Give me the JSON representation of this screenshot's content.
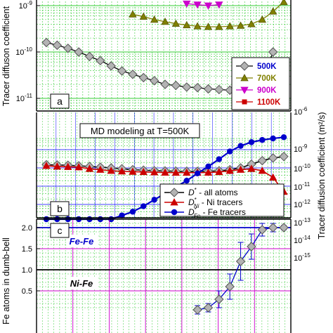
{
  "chart_data": [
    {
      "panel": "a",
      "type": "line",
      "scale": "log",
      "ylabel": "Tracer diffuson coefficient",
      "y_tick_labels": [
        "10-9",
        "10-10",
        "10-11"
      ],
      "ylim": [
        6e-12,
        1.2e-09
      ],
      "x_count": 23,
      "series": [
        {
          "name": "500K",
          "color": "#000000",
          "marker": "diamond-gray",
          "x": [
            1,
            2,
            3,
            4,
            5,
            6,
            7,
            8,
            9,
            10,
            11,
            12,
            13,
            14,
            15,
            16,
            17,
            18,
            19,
            20,
            21,
            22
          ],
          "values": [
            1.6e-10,
            1.4e-10,
            1.2e-10,
            1e-10,
            8e-11,
            6.5e-11,
            5e-11,
            3.9e-11,
            3.3e-11,
            2.8e-11,
            2.4e-11,
            2e-11,
            1.9e-11,
            1.75e-11,
            1.7e-11,
            1.6e-11,
            1.55e-11,
            1.5e-11,
            1.5e-11,
            1.6e-11,
            2.3e-11,
            1e-10
          ]
        },
        {
          "name": "700K",
          "color": "#808000",
          "marker": "triangle",
          "x": [
            9,
            10,
            11,
            12,
            13,
            14,
            15,
            16,
            17,
            18,
            19,
            20,
            21,
            22,
            23
          ],
          "values": [
            6.5e-10,
            5.8e-10,
            5e-10,
            4.5e-10,
            4.1e-10,
            3.8e-10,
            3.6e-10,
            3.5e-10,
            3.5e-10,
            3.6e-10,
            3.7e-10,
            4e-10,
            5e-10,
            7.5e-10,
            1.2e-09
          ]
        },
        {
          "name": "900K",
          "color": "#cc00cc",
          "marker": "triangle-down",
          "x": [
            14,
            15,
            16,
            17
          ],
          "values": [
            1.1e-09,
            1.05e-09,
            1e-09,
            1.05e-09
          ]
        },
        {
          "name": "1100K",
          "color": "#cc0000",
          "marker": "square",
          "x": [],
          "values": []
        }
      ],
      "legend": [
        "500K",
        "700K",
        "900K",
        "1100K"
      ],
      "label": "a"
    },
    {
      "panel": "b",
      "type": "line",
      "scale": "log",
      "ylabel": "Tracer diffusion coefficient (m²/s)",
      "y_tick_labels": [
        "10-6",
        "10-9",
        "10-10",
        "10-11",
        "10-12",
        "10-13",
        "10-14",
        "10-15"
      ],
      "annotation": "MD modeling at T=500K",
      "label": "b",
      "series": [
        {
          "name": "D* - all atoms",
          "legend_main": "D",
          "legend_sub": "",
          "legend_text": " - all atoms",
          "color": "#000000",
          "marker": "diamond-gray",
          "x": [
            1,
            2,
            3,
            4,
            5,
            6,
            7,
            8,
            9,
            10,
            11,
            12,
            13,
            14,
            15,
            16,
            17,
            18,
            19,
            20,
            21,
            22,
            23
          ],
          "values": [
            1.5e-10,
            1.45e-10,
            1.4e-10,
            1.3e-10,
            1.2e-10,
            1.1e-10,
            1e-10,
            9e-11,
            8e-11,
            7.5e-11,
            7e-11,
            6.8e-11,
            6.6e-11,
            6.5e-11,
            6.5e-11,
            6.5e-11,
            7e-11,
            8e-11,
            1e-10,
            1.6e-10,
            2.5e-10,
            3.5e-10,
            4.2e-10
          ]
        },
        {
          "name": "D*Ni - Ni tracers",
          "legend_main": "D",
          "legend_sub": "Ni",
          "legend_text": " - Ni tracers",
          "color": "#cc0000",
          "marker": "triangle",
          "x": [
            1,
            2,
            3,
            4,
            5,
            6,
            7,
            8,
            9,
            10,
            11,
            12,
            13,
            14,
            15,
            16,
            17,
            18,
            19,
            20,
            21,
            22,
            23
          ],
          "values": [
            1.3e-10,
            1.2e-10,
            1.15e-10,
            1.1e-10,
            9e-11,
            8e-11,
            7e-11,
            6.5e-11,
            6.2e-11,
            6e-11,
            5.8e-11,
            5.6e-11,
            5.5e-11,
            5.5e-11,
            5.5e-11,
            5.6e-11,
            6e-11,
            7e-11,
            8e-11,
            9e-11,
            7e-11,
            3e-11,
            5e-12
          ]
        },
        {
          "name": "D*Fe - Fe tracers",
          "legend_main": "D",
          "legend_sub": "Fe",
          "legend_text": " - Fe tracers",
          "color": "#0000cc",
          "marker": "circle",
          "x": [
            1,
            2,
            3,
            4,
            5,
            6,
            7,
            8,
            9,
            10,
            11,
            12,
            13,
            14,
            15,
            16,
            17,
            18,
            19,
            20,
            21,
            22,
            23
          ],
          "values": [
            4e-15,
            8e-15,
            1.5e-14,
            2.5e-14,
            4e-14,
            7e-14,
            1.3e-13,
            2.5e-13,
            4e-13,
            8e-13,
            1.8e-12,
            4e-12,
            9e-12,
            2e-11,
            5e-11,
            1.2e-10,
            3e-10,
            8e-10,
            2e-09,
            4e-09,
            6e-09,
            8e-09,
            1e-08
          ]
        }
      ]
    },
    {
      "panel": "c",
      "type": "line",
      "ylabel": "Fe atoms in dumb-bell",
      "y_tick_labels": [
        "2.0",
        "1.5",
        "1.0",
        "0.5"
      ],
      "ylim": [
        0.1,
        2.2
      ],
      "label": "c",
      "reference_lines": [
        {
          "label": "Fe-Fe",
          "value": 2.0,
          "color": "#0000cc"
        },
        {
          "label": "Ni-Fe",
          "value": 1.0,
          "color": "#000000"
        }
      ],
      "series": [
        {
          "name": "Fe atoms in dumb-bell",
          "color": "#0000cc",
          "marker": "diamond-gray",
          "x": [
            15,
            16,
            17,
            18,
            19,
            20,
            21,
            22,
            23
          ],
          "values": [
            0.05,
            0.1,
            0.3,
            0.6,
            1.2,
            1.55,
            1.95,
            2.0,
            2.0
          ],
          "err": [
            0.1,
            0.1,
            0.2,
            0.3,
            0.45,
            0.3,
            0.15,
            0.1,
            0.05
          ]
        }
      ]
    }
  ],
  "palette": {
    "grid_green": "#33cc33",
    "grid_blue": "#0000ff",
    "grid_magenta": "#cc00cc",
    "axis": "#000000"
  }
}
